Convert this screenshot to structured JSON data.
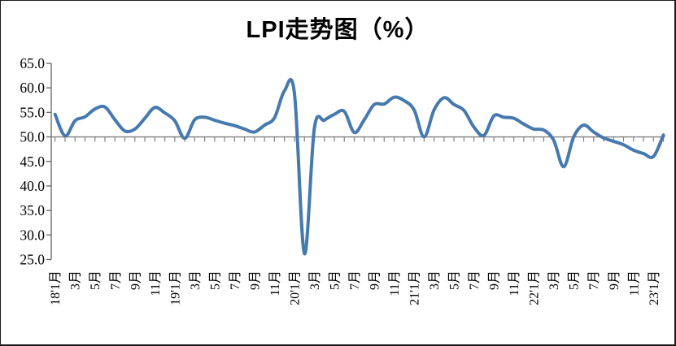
{
  "title": "LPI走势图（%）",
  "colors": {
    "line": "#4679AE",
    "value_axis": "#6E6E6E",
    "category_axis": "#808080",
    "label_text": "#000000"
  },
  "chart_data": {
    "type": "line",
    "title": "LPI走势图（%）",
    "unit": "%",
    "smoothed": true,
    "legend": "none",
    "grid": "single horizontal reference line where category axis crosses at 50.0",
    "y_axis": {
      "min": 25,
      "max": 65,
      "step": 5,
      "crosses_at": 50,
      "tick_labels": [
        "65.0",
        "60.0",
        "55.0",
        "50.0",
        "45.0",
        "40.0",
        "35.0",
        "30.0",
        "25.0"
      ]
    },
    "x_axis": {
      "tick_interval_months": 1,
      "label_interval_months": 2,
      "label_rotation_deg": -90,
      "labels": [
        "18'1月",
        "3月",
        "5月",
        "7月",
        "9月",
        "11月",
        "19'1月",
        "3月",
        "5月",
        "7月",
        "9月",
        "11月",
        "20'1月",
        "3月",
        "5月",
        "7月",
        "9月",
        "11月",
        "21'1月",
        "3月",
        "5月",
        "7月",
        "9月",
        "11月",
        "22'1月",
        "3月",
        "5月",
        "7月",
        "9月",
        "11月",
        "23'1月"
      ]
    },
    "series": [
      {
        "name": "LPI",
        "start_month": "2018-01",
        "end_month": "2023-02",
        "values": [
          54.6,
          50.2,
          53.3,
          54.1,
          55.7,
          56.1,
          53.5,
          51.2,
          51.6,
          53.8,
          56.0,
          54.9,
          53.3,
          49.7,
          53.5,
          54.0,
          53.4,
          52.8,
          52.3,
          51.6,
          51.0,
          52.4,
          53.9,
          59.4,
          58.9,
          26.2,
          51.8,
          53.4,
          54.6,
          55.2,
          50.9,
          53.5,
          56.6,
          56.7,
          58.1,
          57.4,
          55.5,
          50.0,
          55.5,
          58.0,
          56.6,
          55.4,
          52.0,
          50.3,
          54.3,
          54.0,
          53.8,
          52.6,
          51.6,
          51.4,
          49.3,
          43.9,
          50.0,
          52.4,
          51.0,
          49.8,
          49.1,
          48.4,
          47.3,
          46.6,
          46.0,
          50.4
        ]
      }
    ]
  }
}
